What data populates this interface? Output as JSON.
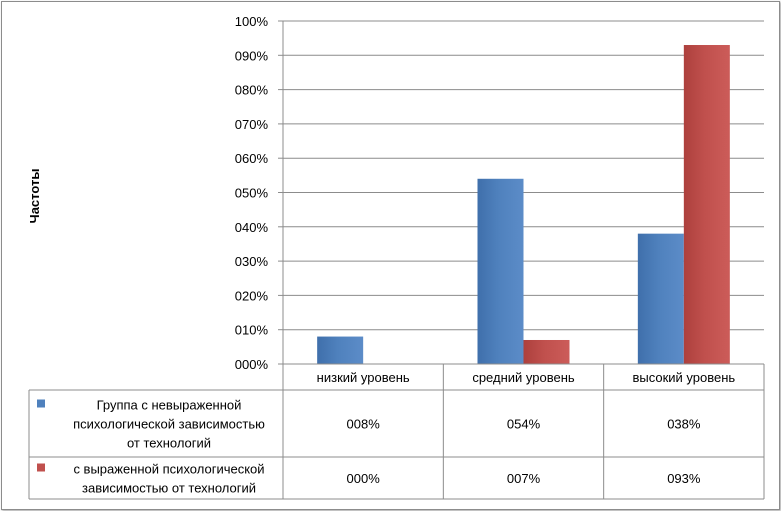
{
  "chart_data": {
    "type": "bar",
    "ylabel": "Частоты",
    "xlabel": "",
    "ylim": [
      0,
      100
    ],
    "y_ticks": [
      "000%",
      "010%",
      "020%",
      "030%",
      "040%",
      "050%",
      "060%",
      "070%",
      "080%",
      "090%",
      "100%"
    ],
    "categories": [
      "низкий уровень",
      "средний уровень",
      "высокий уровень"
    ],
    "grid": true,
    "legend": "data-table-below",
    "series": [
      {
        "name_lines": [
          "Группа с невыраженной",
          "психологической зависимостью",
          "от технологий"
        ],
        "color": "#4f81bd",
        "values": [
          8,
          54,
          38
        ],
        "table_labels": [
          "008%",
          "054%",
          "038%"
        ]
      },
      {
        "name_lines": [
          "с выраженной психологической",
          "зависимостью от технологий"
        ],
        "color": "#c0504d",
        "values": [
          0,
          7,
          93
        ],
        "table_labels": [
          "000%",
          "007%",
          "093%"
        ]
      }
    ]
  }
}
